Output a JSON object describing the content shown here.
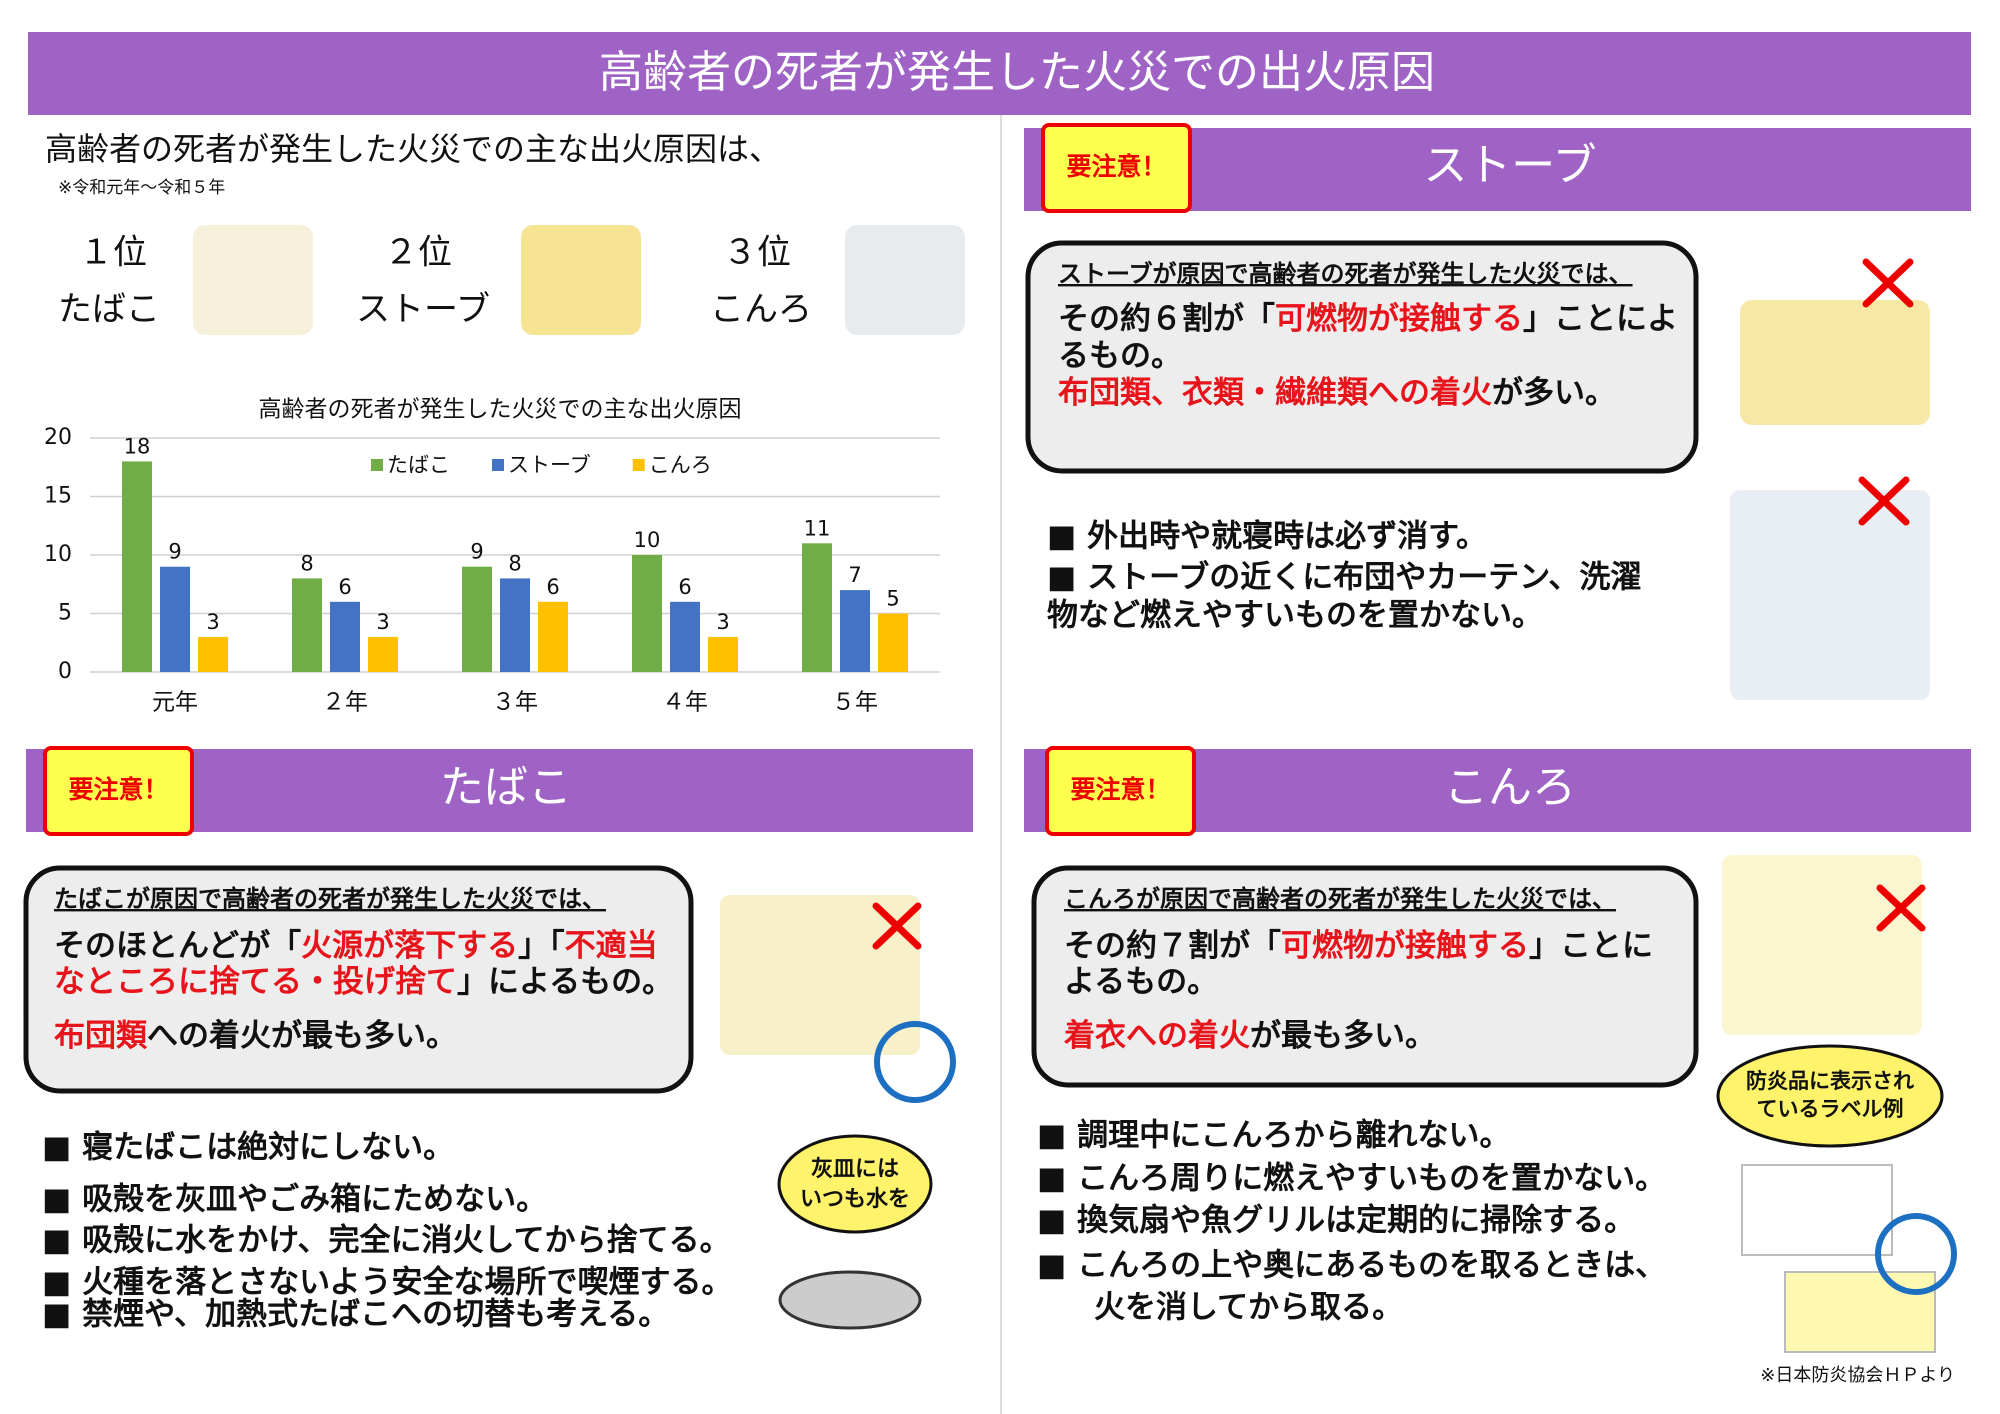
{
  "header": {
    "title": "高齢者の死者が発生した火災での出火原因"
  },
  "intro": {
    "text": "高齢者の死者が発生した火災での主な出火原因は、",
    "note": "※令和元年～令和５年",
    "ranks": [
      {
        "rank": "１位",
        "cause": "たばこ"
      },
      {
        "rank": "２位",
        "cause": "ストーブ"
      },
      {
        "rank": "３位",
        "cause": "こんろ"
      }
    ]
  },
  "chart_data": {
    "type": "bar",
    "title": "高齢者の死者が発生した火災での主な出火原因",
    "categories": [
      "元年",
      "２年",
      "３年",
      "４年",
      "５年"
    ],
    "series": [
      {
        "name": "たばこ",
        "color": "#70ad47",
        "values": [
          18,
          8,
          9,
          10,
          11
        ]
      },
      {
        "name": "ストーブ",
        "color": "#4472c4",
        "values": [
          9,
          6,
          8,
          6,
          7
        ]
      },
      {
        "name": "こんろ",
        "color": "#ffc000",
        "values": [
          3,
          3,
          6,
          3,
          5
        ]
      }
    ],
    "ylim": [
      0,
      20
    ],
    "yticks": [
      0,
      5,
      10,
      15,
      20
    ],
    "grid": true,
    "legend": "top",
    "data_labels": true
  },
  "sections": [
    {
      "badge": "要注意！",
      "title": "ストーブ",
      "lead": "ストーブが原因で高齢者の死者が発生した火災では、",
      "lines": [
        [
          {
            "text": "その約６割が「"
          },
          {
            "text": "可燃物が接触する",
            "emphasis": true
          },
          {
            "text": "」ことによ"
          }
        ],
        [
          {
            "text": "るもの。"
          }
        ],
        [
          {
            "text": "布団類、衣類・繊維類への着火",
            "emphasis": true
          },
          {
            "text": "が多い。"
          }
        ]
      ],
      "bullets": [
        "■ 外出時や就寝時は必ず消す。",
        "■ ストーブの近くに布団やカーテン、洗濯",
        "物など燃えやすいものを置かない。"
      ]
    },
    {
      "badge": "要注意！",
      "title": "たばこ",
      "lead": "たばこが原因で高齢者の死者が発生した火災では、",
      "lines": [
        [
          {
            "text": "そのほとんどが「"
          },
          {
            "text": "火源が落下する",
            "emphasis": true
          },
          {
            "text": "」「"
          },
          {
            "text": "不適当",
            "emphasis": true
          }
        ],
        [
          {
            "text": "なところに捨てる・投げ捨て",
            "emphasis": true
          },
          {
            "text": "」によるもの。"
          }
        ],
        [
          {
            "text": "布団類",
            "emphasis": true
          },
          {
            "text": "への着火が最も多い。"
          }
        ]
      ],
      "bullets": [
        "■ 寝たばこは絶対にしない。",
        "■ 吸殻を灰皿やごみ箱にためない。",
        "■ 吸殻に水をかけ、完全に消火してから捨てる。",
        "■ 火種を落とさないよう安全な場所で喫煙する。",
        "■ 禁煙や、加熱式たばこへの切替も考える。"
      ]
    },
    {
      "badge": "要注意！",
      "title": "こんろ",
      "lead": "こんろが原因で高齢者の死者が発生した火災では、",
      "lines": [
        [
          {
            "text": "その約７割が「"
          },
          {
            "text": "可燃物が接触する",
            "emphasis": true
          },
          {
            "text": "」ことに"
          }
        ],
        [
          {
            "text": "よるもの。"
          }
        ],
        [
          {
            "text": "着衣への着火",
            "emphasis": true
          },
          {
            "text": "が最も多い。"
          }
        ]
      ],
      "bullets": [
        "■ 調理中にこんろから離れない。",
        "■ こんろ周りに燃えやすいものを置かない。",
        "■ 換気扇や魚グリルは定期的に掃除する。",
        "■ こんろの上や奥にあるものを取るときは、",
        "火を消してから取る。"
      ]
    }
  ],
  "callouts": {
    "ashtray": [
      "灰皿には",
      "いつも水を"
    ],
    "label": [
      "防炎品に表示され",
      "ているラベル例"
    ],
    "source": "※日本防炎協会ＨＰより"
  }
}
